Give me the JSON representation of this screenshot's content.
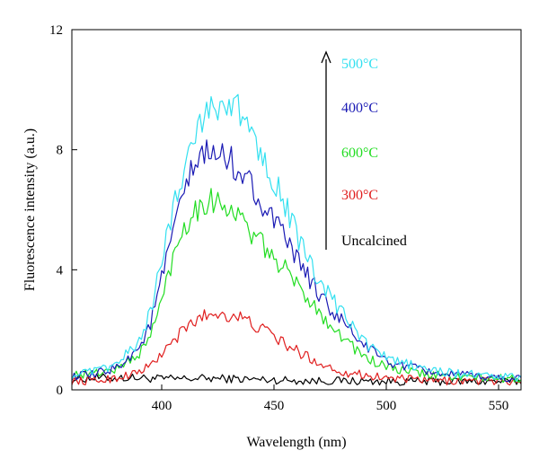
{
  "chart_data": {
    "type": "line",
    "xlabel": "Wavelength (nm)",
    "ylabel": "Fluorescence intensity (a.u.)",
    "xlim": [
      360,
      560
    ],
    "ylim": [
      0,
      12
    ],
    "xticks": [
      400,
      450,
      500,
      550
    ],
    "yticks": [
      0,
      4,
      8,
      12
    ],
    "xtick_labels": [
      "400",
      "450",
      "500",
      "550"
    ],
    "ytick_labels": [
      "0",
      "4",
      "8",
      "12"
    ],
    "legend_placement": "top-right",
    "legend_arrow": "increasing intensity",
    "x": [
      360,
      370,
      380,
      390,
      395,
      400,
      405,
      410,
      415,
      420,
      425,
      430,
      435,
      440,
      445,
      450,
      455,
      460,
      465,
      470,
      475,
      480,
      490,
      500,
      510,
      520,
      530,
      540,
      550,
      560
    ],
    "series": [
      {
        "name": "500°C",
        "color": "#33e0f0",
        "values": [
          0.5,
          0.6,
          0.85,
          1.6,
          2.6,
          4.3,
          6.0,
          7.5,
          8.6,
          9.3,
          9.6,
          9.5,
          9.2,
          8.6,
          7.9,
          7.0,
          6.2,
          5.2,
          4.3,
          3.6,
          3.1,
          2.6,
          1.6,
          1.05,
          0.85,
          0.65,
          0.55,
          0.5,
          0.45,
          0.4
        ]
      },
      {
        "name": "400°C",
        "color": "#1a1ab4",
        "values": [
          0.45,
          0.5,
          0.75,
          1.4,
          2.2,
          3.7,
          5.2,
          6.6,
          7.5,
          7.9,
          7.8,
          7.7,
          7.3,
          6.8,
          6.2,
          5.6,
          5.0,
          4.4,
          3.8,
          3.2,
          2.7,
          2.3,
          1.5,
          0.95,
          0.75,
          0.6,
          0.5,
          0.45,
          0.4,
          0.38
        ]
      },
      {
        "name": "600°C",
        "color": "#22dd22",
        "values": [
          0.5,
          0.55,
          0.7,
          1.2,
          1.8,
          3.0,
          4.4,
          5.5,
          6.0,
          6.3,
          6.3,
          6.1,
          5.7,
          5.2,
          4.8,
          4.4,
          4.0,
          3.5,
          3.1,
          2.6,
          2.2,
          1.8,
          1.1,
          0.75,
          0.6,
          0.5,
          0.45,
          0.4,
          0.38,
          0.35
        ]
      },
      {
        "name": "300°C",
        "color": "#e01e1e",
        "values": [
          0.3,
          0.3,
          0.4,
          0.6,
          0.8,
          1.2,
          1.6,
          2.0,
          2.3,
          2.5,
          2.55,
          2.5,
          2.4,
          2.2,
          2.0,
          1.8,
          1.5,
          1.3,
          1.1,
          0.9,
          0.75,
          0.6,
          0.5,
          0.4,
          0.35,
          0.3,
          0.3,
          0.3,
          0.3,
          0.28
        ]
      },
      {
        "name": "Uncalcined",
        "color": "#000000",
        "values": [
          0.35,
          0.4,
          0.4,
          0.4,
          0.38,
          0.37,
          0.36,
          0.37,
          0.38,
          0.38,
          0.38,
          0.37,
          0.36,
          0.35,
          0.34,
          0.33,
          0.32,
          0.31,
          0.3,
          0.3,
          0.3,
          0.3,
          0.29,
          0.28,
          0.28,
          0.28,
          0.28,
          0.28,
          0.28,
          0.28
        ]
      }
    ],
    "legend_order": [
      "500°C",
      "400°C",
      "600°C",
      "300°C",
      "Uncalcined"
    ]
  }
}
